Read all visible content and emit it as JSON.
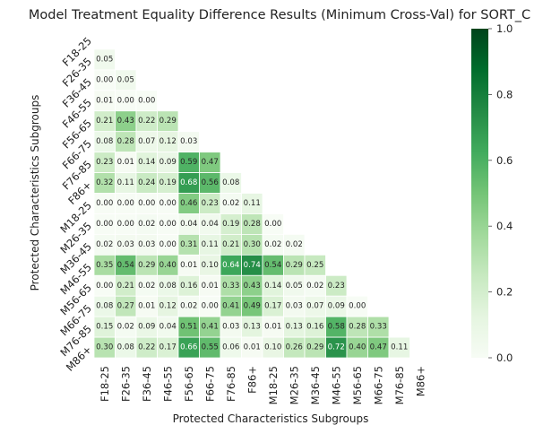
{
  "chart_data": {
    "type": "heatmap",
    "title": "Model Treatment Equality Difference Results (Minimum Cross-Val) for SORT_C",
    "xlabel": "Protected Characteristics Subgroups",
    "ylabel": "Protected Characteristics Subgroups",
    "categories": [
      "F18-25",
      "F26-35",
      "F36-45",
      "F46-55",
      "F56-65",
      "F66-75",
      "F76-85",
      "F86+",
      "M18-25",
      "M26-35",
      "M36-45",
      "M46-55",
      "M56-65",
      "M66-75",
      "M76-85",
      "M86+"
    ],
    "mask": "upper-triangle-including-diagonal",
    "colormap": "Greens",
    "vmin": 0,
    "vmax": 1,
    "colorbar_ticks": [
      "0.0",
      "0.2",
      "0.4",
      "0.6",
      "0.8",
      "1.0"
    ],
    "values": [
      [],
      [
        0.05
      ],
      [
        0.0,
        0.05
      ],
      [
        0.01,
        0.0,
        0.0
      ],
      [
        0.21,
        0.43,
        0.22,
        0.29
      ],
      [
        0.08,
        0.28,
        0.07,
        0.12,
        0.03
      ],
      [
        0.23,
        0.01,
        0.14,
        0.09,
        0.59,
        0.47
      ],
      [
        0.32,
        0.11,
        0.24,
        0.19,
        0.68,
        0.56,
        0.08
      ],
      [
        0.0,
        0.0,
        0.0,
        0.0,
        0.46,
        0.23,
        0.02,
        0.11
      ],
      [
        0.0,
        0.0,
        0.02,
        0.0,
        0.04,
        0.04,
        0.19,
        0.28,
        0.0
      ],
      [
        0.02,
        0.03,
        0.03,
        0.0,
        0.31,
        0.11,
        0.21,
        0.3,
        0.02,
        0.02
      ],
      [
        0.35,
        0.54,
        0.29,
        0.4,
        0.01,
        0.1,
        0.64,
        0.74,
        0.54,
        0.29,
        0.25
      ],
      [
        0.0,
        0.21,
        0.02,
        0.08,
        0.16,
        0.01,
        0.33,
        0.43,
        0.14,
        0.05,
        0.02,
        0.23
      ],
      [
        0.08,
        0.27,
        0.01,
        0.12,
        0.02,
        0.0,
        0.41,
        0.49,
        0.17,
        0.03,
        0.07,
        0.09,
        0.0
      ],
      [
        0.15,
        0.02,
        0.09,
        0.04,
        0.51,
        0.41,
        0.03,
        0.13,
        0.01,
        0.13,
        0.16,
        0.58,
        0.28,
        0.33
      ],
      [
        0.3,
        0.08,
        0.22,
        0.17,
        0.66,
        0.55,
        0.06,
        0.01,
        0.1,
        0.26,
        0.29,
        0.72,
        0.4,
        0.47,
        0.11
      ]
    ]
  }
}
